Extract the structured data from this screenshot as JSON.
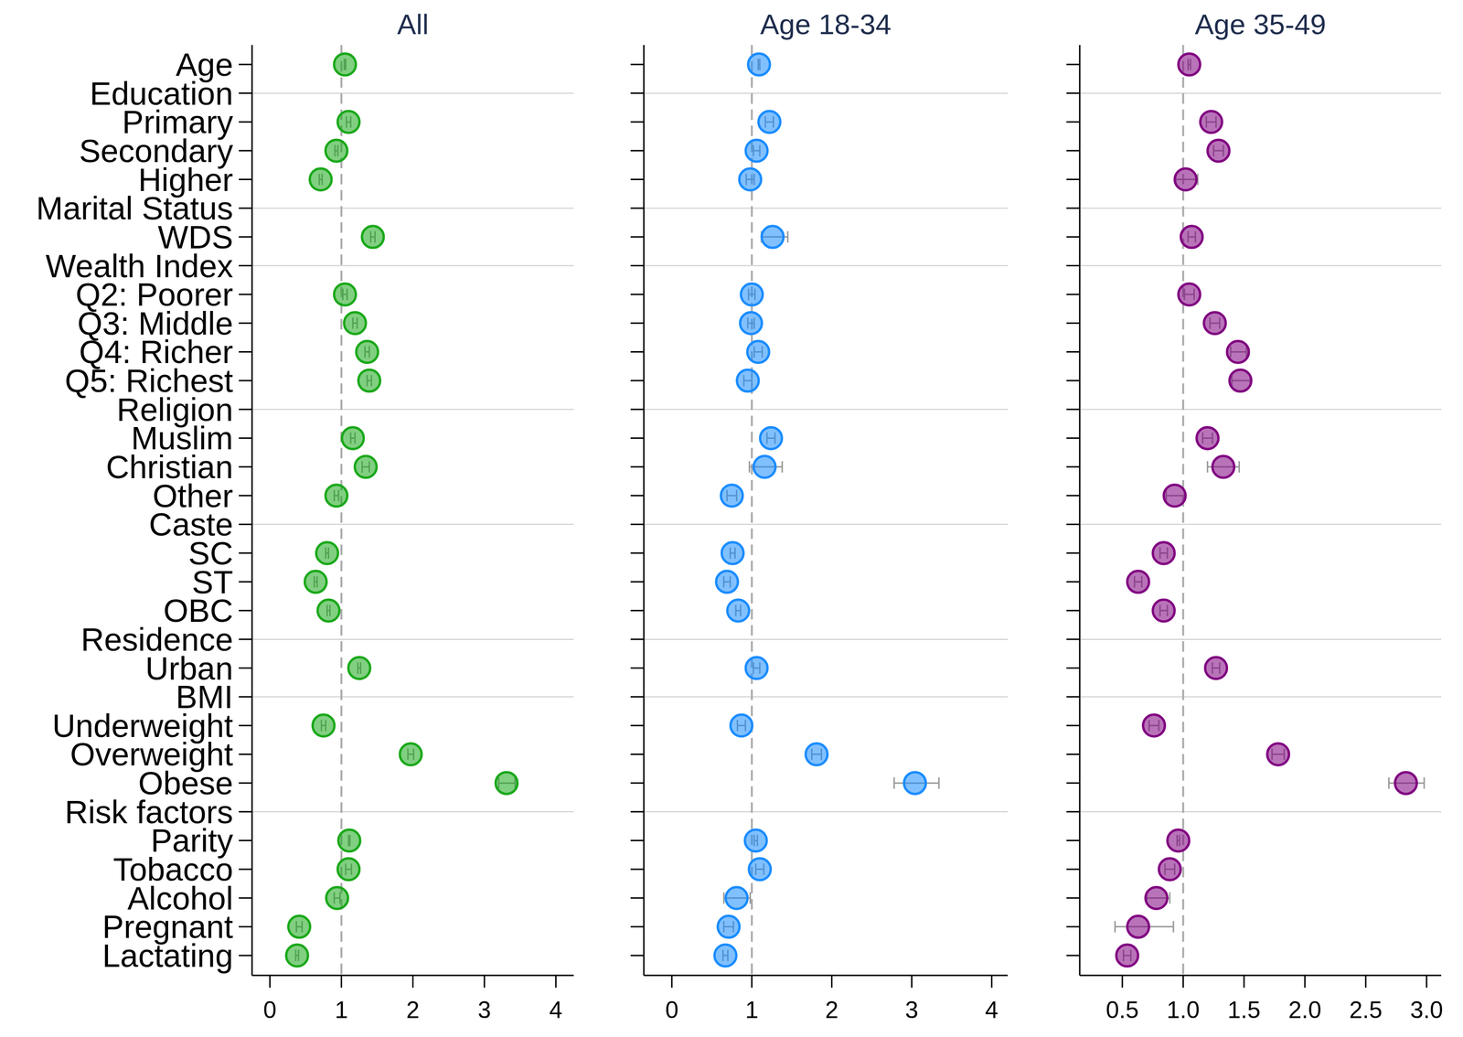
{
  "chart_data": [
    {
      "type": "dot",
      "title": "All",
      "categories": [
        "Age",
        "Education",
        "Primary",
        "Secondary",
        "Higher",
        "Marital Status",
        "WDS",
        "Wealth Index",
        "Q2: Poorer",
        "Q3: Middle",
        "Q4: Richer",
        "Q5: Richest",
        "Religion",
        "Muslim",
        "Christian",
        "Other",
        "Caste",
        "SC",
        "ST",
        "OBC",
        "Residence",
        "Urban",
        "BMI",
        "Underweight",
        "Overweight",
        "Obese",
        "Risk factors",
        "Parity",
        "Tobacco",
        "Alcohol",
        "Pregnant",
        "Lactating"
      ],
      "values": [
        1.05,
        null,
        1.1,
        0.93,
        0.71,
        null,
        1.44,
        null,
        1.05,
        1.19,
        1.36,
        1.39,
        null,
        1.16,
        1.34,
        0.93,
        null,
        0.8,
        0.64,
        0.82,
        null,
        1.25,
        null,
        0.75,
        1.97,
        3.31,
        null,
        1.11,
        1.1,
        0.94,
        0.41,
        0.38
      ],
      "ci_low": [
        1.04,
        null,
        1.07,
        0.91,
        0.69,
        null,
        1.41,
        null,
        1.02,
        1.16,
        1.33,
        1.36,
        null,
        1.13,
        1.29,
        0.9,
        null,
        0.78,
        0.62,
        0.8,
        null,
        1.23,
        null,
        0.72,
        1.93,
        3.2,
        null,
        1.1,
        1.06,
        0.9,
        0.37,
        0.36
      ],
      "ci_high": [
        1.06,
        null,
        1.13,
        0.95,
        0.73,
        null,
        1.47,
        null,
        1.08,
        1.22,
        1.39,
        1.42,
        null,
        1.19,
        1.39,
        0.96,
        null,
        0.82,
        0.66,
        0.84,
        null,
        1.27,
        null,
        0.78,
        2.01,
        3.43,
        null,
        1.12,
        1.14,
        0.98,
        0.45,
        0.4
      ],
      "reference": 1,
      "xlim": [
        -0.25,
        4.25
      ],
      "xticks": [
        0,
        1,
        2,
        3,
        4
      ],
      "orientation": "horizontal",
      "grid": true,
      "tick_labels": true,
      "color": "#1aa81a",
      "marker": "circle"
    },
    {
      "type": "dot",
      "title": "Age 18-34",
      "categories": [
        "Age",
        "Education",
        "Primary",
        "Secondary",
        "Higher",
        "Marital Status",
        "WDS",
        "Wealth Index",
        "Q2: Poorer",
        "Q3: Middle",
        "Q4: Richer",
        "Q5: Richest",
        "Religion",
        "Muslim",
        "Christian",
        "Other",
        "Caste",
        "SC",
        "ST",
        "OBC",
        "Residence",
        "Urban",
        "BMI",
        "Underweight",
        "Overweight",
        "Obese",
        "Risk factors",
        "Parity",
        "Tobacco",
        "Alcohol",
        "Pregnant",
        "Lactating"
      ],
      "values": [
        1.09,
        null,
        1.22,
        1.06,
        0.98,
        null,
        1.26,
        null,
        1.0,
        0.99,
        1.08,
        0.95,
        null,
        1.24,
        1.16,
        0.75,
        null,
        0.76,
        0.69,
        0.83,
        null,
        1.06,
        null,
        0.87,
        1.81,
        3.04,
        null,
        1.05,
        1.1,
        0.81,
        0.71,
        0.67
      ],
      "ci_low": [
        1.08,
        null,
        1.17,
        1.02,
        0.93,
        null,
        1.12,
        null,
        0.96,
        0.95,
        1.03,
        0.9,
        null,
        1.19,
        0.97,
        0.69,
        null,
        0.73,
        0.65,
        0.8,
        null,
        1.02,
        null,
        0.82,
        1.75,
        2.78,
        null,
        1.03,
        1.05,
        0.65,
        0.65,
        0.64
      ],
      "ci_high": [
        1.1,
        null,
        1.27,
        1.1,
        1.03,
        null,
        1.45,
        null,
        1.04,
        1.03,
        1.13,
        1.0,
        null,
        1.29,
        1.38,
        0.81,
        null,
        0.79,
        0.73,
        0.86,
        null,
        1.1,
        null,
        0.92,
        1.87,
        3.34,
        null,
        1.07,
        1.15,
        0.98,
        0.77,
        0.7
      ],
      "reference": 1,
      "xlim": [
        -0.35,
        4.2
      ],
      "xticks": [
        0,
        1,
        2,
        3,
        4
      ],
      "orientation": "horizontal",
      "grid": true,
      "tick_labels": "x",
      "color": "#1a8cff",
      "marker": "circle"
    },
    {
      "type": "dot",
      "title": "Age 35-49",
      "categories": [
        "Age",
        "Education",
        "Primary",
        "Secondary",
        "Higher",
        "Marital Status",
        "WDS",
        "Wealth Index",
        "Q2: Poorer",
        "Q3: Middle",
        "Q4: Richer",
        "Q5: Richest",
        "Religion",
        "Muslim",
        "Christian",
        "Other",
        "Caste",
        "SC",
        "ST",
        "OBC",
        "Residence",
        "Urban",
        "BMI",
        "Underweight",
        "Overweight",
        "Obese",
        "Risk factors",
        "Parity",
        "Tobacco",
        "Alcohol",
        "Pregnant",
        "Lactating"
      ],
      "values": [
        1.05,
        null,
        1.23,
        1.29,
        1.02,
        null,
        1.07,
        null,
        1.05,
        1.26,
        1.45,
        1.47,
        null,
        1.2,
        1.33,
        0.93,
        null,
        0.84,
        0.63,
        0.84,
        null,
        1.27,
        null,
        0.76,
        1.78,
        2.83,
        null,
        0.96,
        0.89,
        0.78,
        0.63,
        0.54
      ],
      "ci_low": [
        1.04,
        null,
        1.19,
        1.25,
        0.94,
        null,
        1.04,
        null,
        1.01,
        1.22,
        1.39,
        1.4,
        null,
        1.16,
        1.2,
        0.86,
        null,
        0.81,
        0.6,
        0.81,
        null,
        1.24,
        null,
        0.72,
        1.73,
        2.69,
        null,
        0.95,
        0.85,
        0.7,
        0.44,
        0.51
      ],
      "ci_high": [
        1.06,
        null,
        1.27,
        1.33,
        1.12,
        null,
        1.1,
        null,
        1.09,
        1.3,
        1.52,
        1.55,
        null,
        1.24,
        1.46,
        1.01,
        null,
        0.87,
        0.66,
        0.87,
        null,
        1.3,
        null,
        0.8,
        1.83,
        2.98,
        null,
        0.97,
        0.93,
        0.89,
        0.92,
        0.57
      ],
      "reference": 1,
      "xlim": [
        0.15,
        3.12
      ],
      "xticks": [
        0.5,
        {
          "value": 1,
          "label": "1.0"
        },
        1.5,
        {
          "value": 2,
          "label": "2.0"
        },
        2.5,
        {
          "value": 3,
          "label": "3.0"
        }
      ],
      "orientation": "horizontal",
      "grid": true,
      "tick_labels": "x",
      "color": "#800080",
      "marker": "circle"
    }
  ]
}
